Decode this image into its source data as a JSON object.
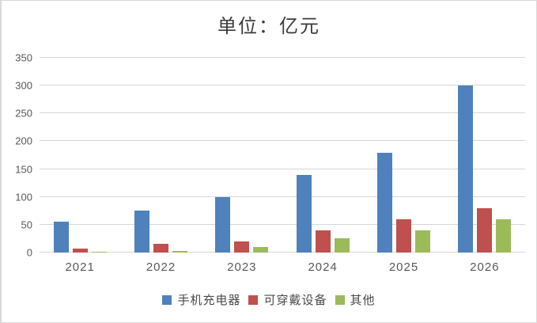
{
  "chart_data": {
    "type": "bar",
    "title": "单位：亿元",
    "categories": [
      "2021",
      "2022",
      "2023",
      "2024",
      "2025",
      "2026"
    ],
    "series": [
      {
        "name": "手机充电器",
        "color": "#4F81BD",
        "values": [
          55,
          75,
          100,
          140,
          180,
          300
        ]
      },
      {
        "name": "可穿戴设备",
        "color": "#C0504D",
        "values": [
          7,
          15,
          20,
          40,
          60,
          80
        ]
      },
      {
        "name": "其他",
        "color": "#9BBB59",
        "values": [
          2,
          3,
          10,
          25,
          40,
          60
        ]
      }
    ],
    "xlabel": "",
    "ylabel": "",
    "ylim": [
      0,
      350
    ],
    "yticks": [
      0,
      50,
      100,
      150,
      200,
      250,
      300,
      350
    ],
    "grid": "horizontal-only",
    "legend_position": "bottom-center"
  },
  "colors": {
    "background": "#ffffff",
    "border": "#d9d9d9",
    "gridline": "#d6d6d6",
    "axis_text": "#595959",
    "title_text": "#3b3b3b",
    "series_blue": "#4F81BD",
    "series_red": "#C0504D",
    "series_green": "#9BBB59"
  }
}
